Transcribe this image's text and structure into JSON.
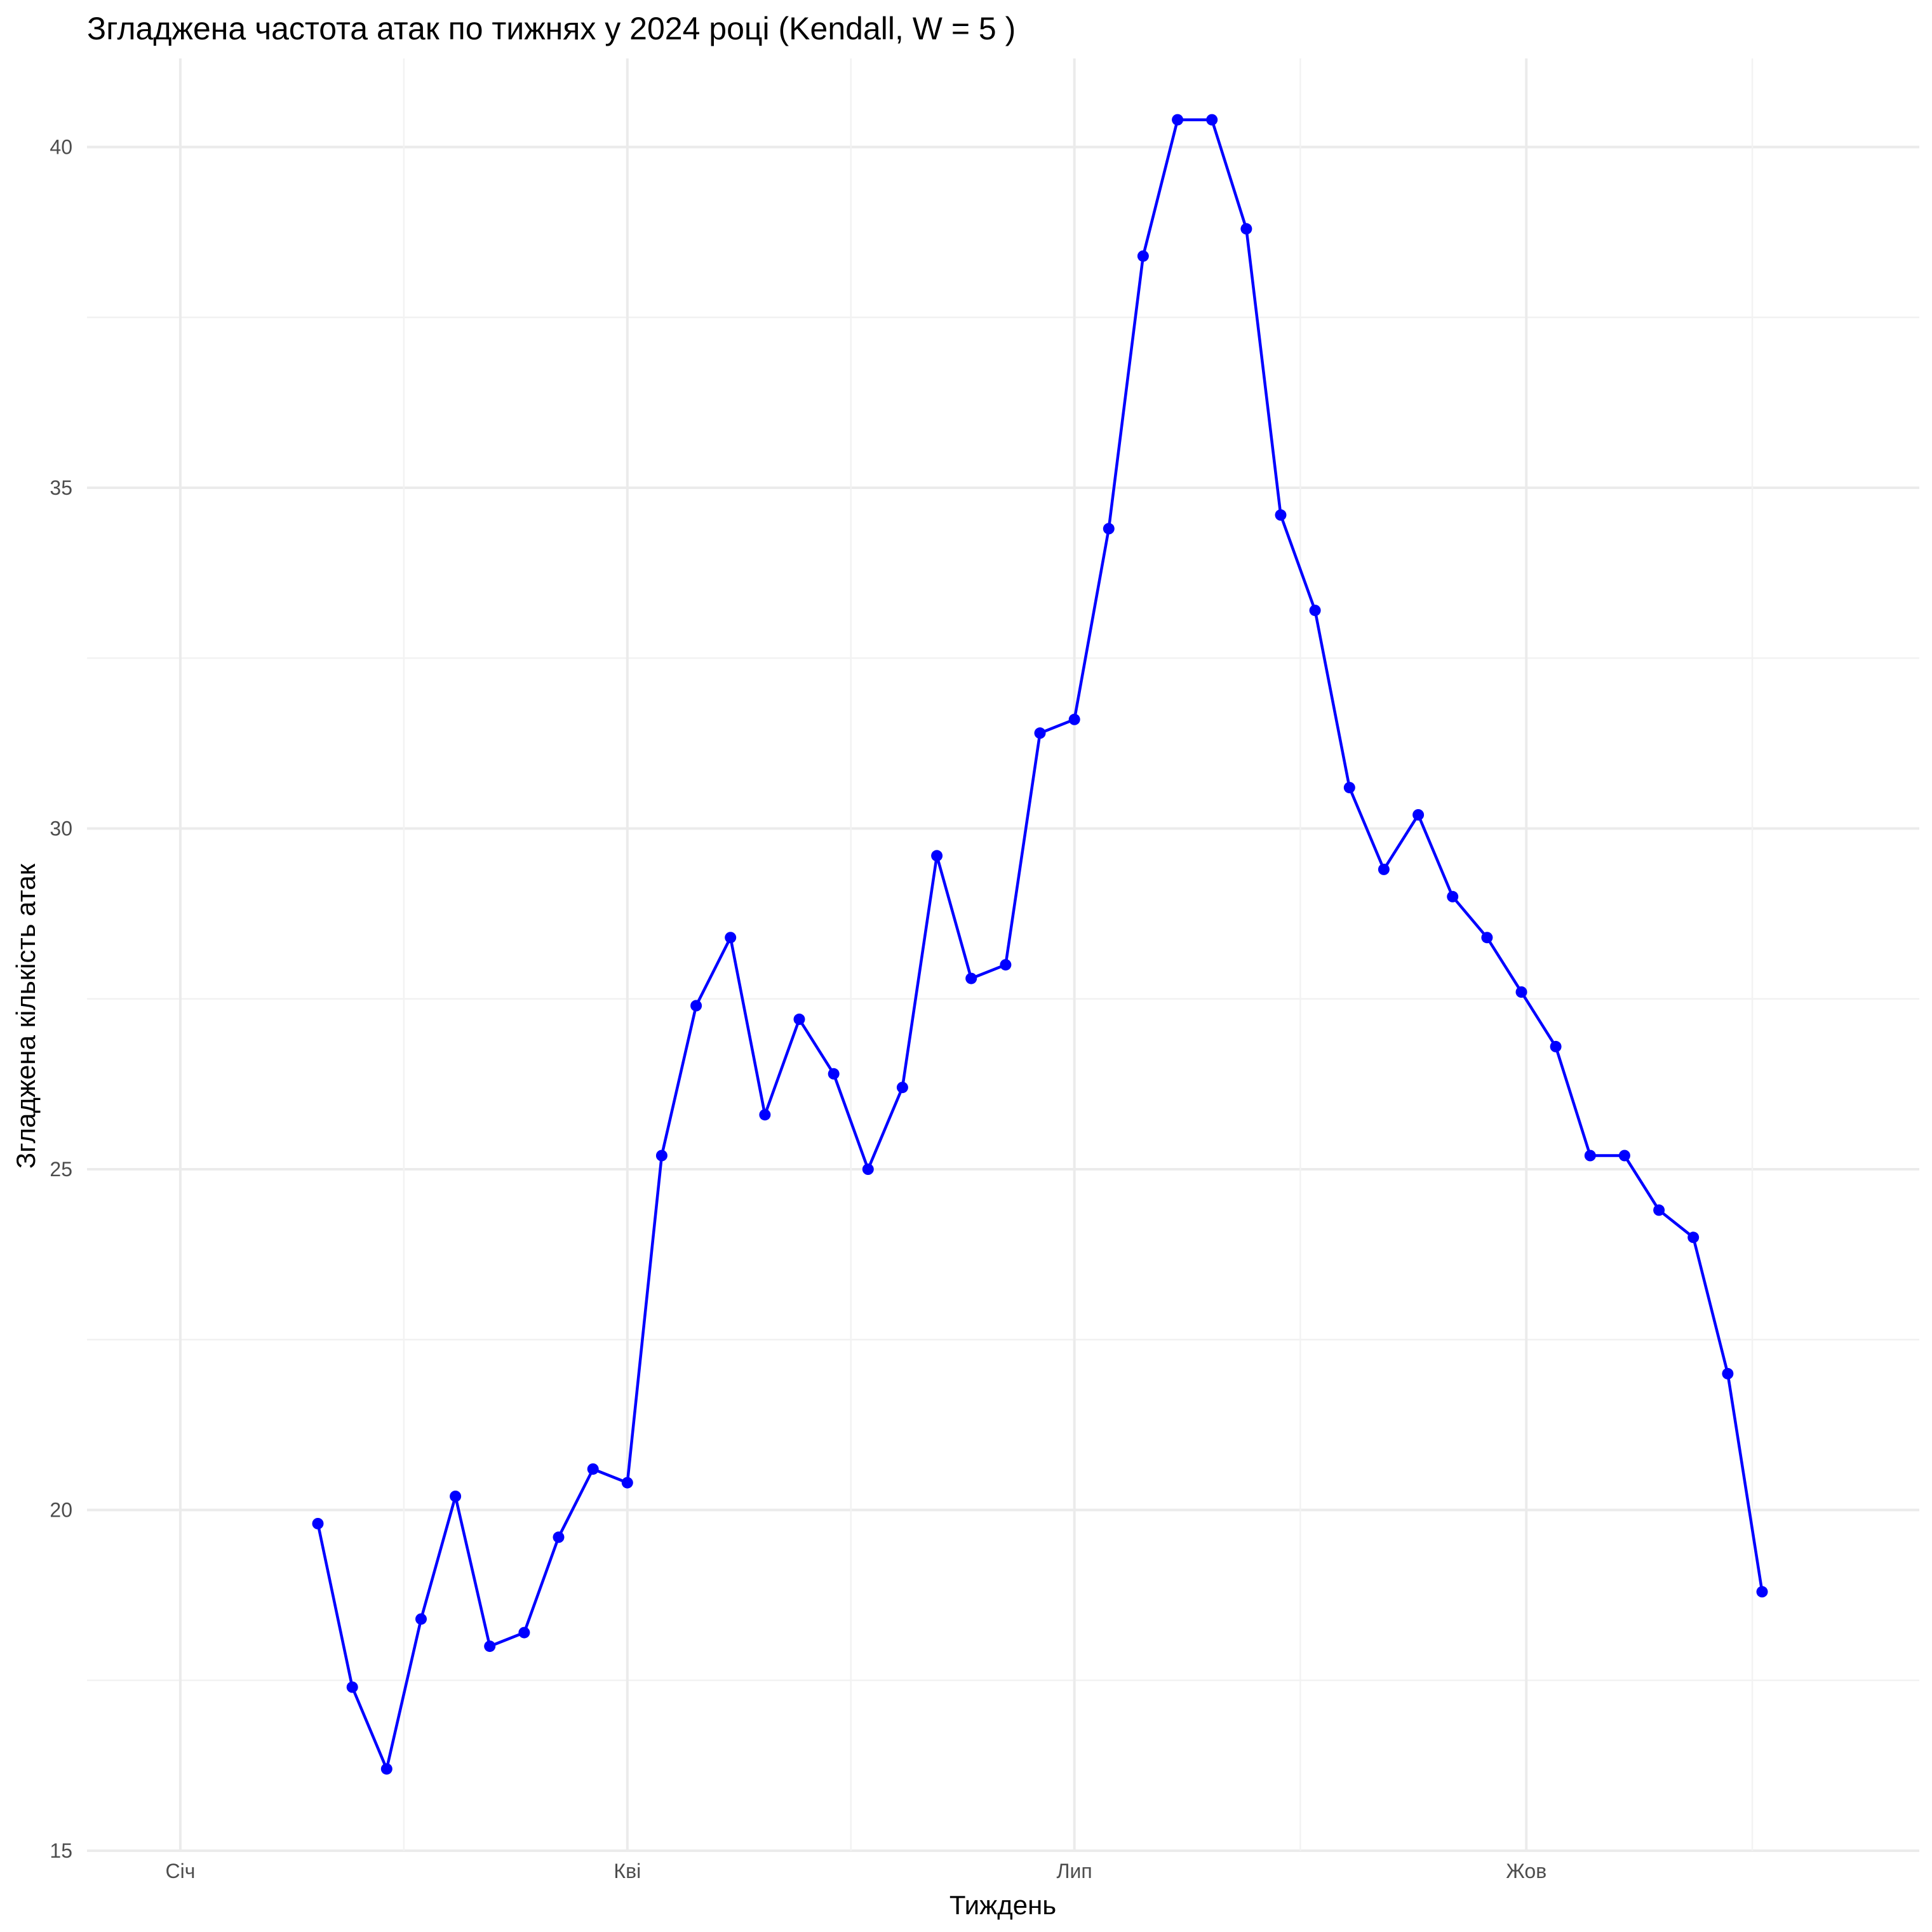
{
  "chart_data": {
    "type": "line",
    "title": "Згладжена частота атак по тижнях у 2024 році (Kendall, W = 5 )",
    "xlabel": "Тиждень",
    "ylabel": "Згладжена кількість атак",
    "x_axis": {
      "type": "date",
      "range": [
        "2023-12-13",
        "2024-12-20"
      ],
      "ticks": [
        {
          "date": "2024-01-01",
          "label": "Січ"
        },
        {
          "date": "2024-04-01",
          "label": "Кві"
        },
        {
          "date": "2024-07-01",
          "label": "Лип"
        },
        {
          "date": "2024-10-01",
          "label": "Жов"
        }
      ]
    },
    "y_axis": {
      "range": [
        15,
        41.3
      ],
      "ticks": [
        15,
        20,
        25,
        30,
        35,
        40
      ]
    },
    "grid": true,
    "legend": "none",
    "color": "#0000ff",
    "series": [
      {
        "x": [
          "2024-01-29",
          "2024-02-05",
          "2024-02-12",
          "2024-02-19",
          "2024-02-26",
          "2024-03-04",
          "2024-03-11",
          "2024-03-18",
          "2024-03-25",
          "2024-04-01",
          "2024-04-08",
          "2024-04-15",
          "2024-04-22",
          "2024-04-29",
          "2024-05-06",
          "2024-05-13",
          "2024-05-20",
          "2024-05-27",
          "2024-06-03",
          "2024-06-10",
          "2024-06-17",
          "2024-06-24",
          "2024-07-01",
          "2024-07-08",
          "2024-07-15",
          "2024-07-22",
          "2024-07-29",
          "2024-08-05",
          "2024-08-12",
          "2024-08-19",
          "2024-08-26",
          "2024-09-02",
          "2024-09-09",
          "2024-09-16",
          "2024-09-23",
          "2024-09-30",
          "2024-10-07",
          "2024-10-14",
          "2024-10-21",
          "2024-10-28",
          "2024-11-04",
          "2024-11-11",
          "2024-11-18"
        ],
        "values": [
          19.8,
          17.4,
          16.2,
          18.4,
          20.2,
          18.0,
          18.2,
          19.6,
          20.6,
          20.4,
          25.2,
          27.4,
          28.4,
          25.8,
          27.2,
          26.4,
          25.0,
          26.2,
          29.6,
          27.8,
          28.0,
          31.4,
          31.6,
          34.4,
          38.4,
          40.4,
          40.4,
          38.8,
          34.6,
          33.2,
          30.6,
          29.4,
          30.2,
          29.0,
          28.4,
          27.6,
          26.8,
          25.2,
          25.2,
          24.4,
          24.0,
          22.0,
          18.8
        ]
      }
    ]
  }
}
